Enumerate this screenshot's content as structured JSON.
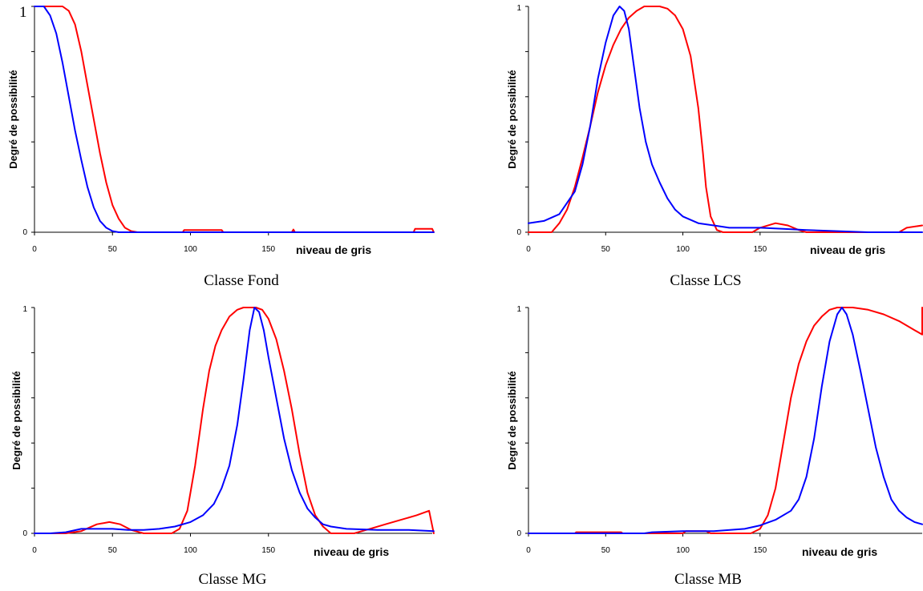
{
  "chart_data": [
    {
      "type": "line",
      "caption": "Classe Fond",
      "ylabel": "Degré de possibilité",
      "xlabel": "niveau de gris",
      "xlim": [
        0,
        255
      ],
      "ylim": [
        0,
        1
      ],
      "xticks": [
        "0",
        "50",
        "100",
        "150"
      ],
      "xtick_values": [
        0,
        50,
        100,
        150
      ],
      "ytick_labels": {
        "0": "0",
        "1": "1"
      },
      "y_max_label_large": true,
      "series": [
        {
          "color": "#ff0000",
          "points": [
            [
              0,
              1
            ],
            [
              18,
              1
            ],
            [
              22,
              0.98
            ],
            [
              26,
              0.92
            ],
            [
              30,
              0.8
            ],
            [
              34,
              0.65
            ],
            [
              38,
              0.5
            ],
            [
              42,
              0.35
            ],
            [
              46,
              0.22
            ],
            [
              50,
              0.12
            ],
            [
              54,
              0.06
            ],
            [
              58,
              0.02
            ],
            [
              62,
              0.005
            ],
            [
              66,
              0
            ],
            [
              95,
              0
            ],
            [
              96,
              0.01
            ],
            [
              120,
              0.01
            ],
            [
              121,
              0
            ],
            [
              165,
              0
            ],
            [
              166,
              0.012
            ],
            [
              167,
              0
            ],
            [
              243,
              0
            ],
            [
              244,
              0.015
            ],
            [
              255,
              0.015
            ],
            [
              256,
              0
            ]
          ]
        },
        {
          "color": "#0000ff",
          "points": [
            [
              0,
              1
            ],
            [
              6,
              1
            ],
            [
              10,
              0.96
            ],
            [
              14,
              0.88
            ],
            [
              18,
              0.75
            ],
            [
              22,
              0.6
            ],
            [
              26,
              0.45
            ],
            [
              30,
              0.32
            ],
            [
              34,
              0.2
            ],
            [
              38,
              0.11
            ],
            [
              42,
              0.05
            ],
            [
              46,
              0.02
            ],
            [
              50,
              0.005
            ],
            [
              54,
              0
            ],
            [
              256,
              0
            ]
          ]
        }
      ]
    },
    {
      "type": "line",
      "caption": "Classe LCS",
      "ylabel": "Degré de possibilité",
      "xlabel": "niveau de gris",
      "xlim": [
        0,
        255
      ],
      "ylim": [
        0,
        1
      ],
      "xticks": [
        "0",
        "50",
        "100",
        "150"
      ],
      "xtick_values": [
        0,
        50,
        100,
        150
      ],
      "ytick_labels": {
        "0": "0",
        "1": "1"
      },
      "y_max_label_large": false,
      "series": [
        {
          "color": "#ff0000",
          "points": [
            [
              0,
              0
            ],
            [
              15,
              0
            ],
            [
              20,
              0.04
            ],
            [
              25,
              0.1
            ],
            [
              30,
              0.2
            ],
            [
              35,
              0.33
            ],
            [
              40,
              0.47
            ],
            [
              45,
              0.62
            ],
            [
              50,
              0.74
            ],
            [
              55,
              0.83
            ],
            [
              60,
              0.9
            ],
            [
              65,
              0.95
            ],
            [
              70,
              0.98
            ],
            [
              75,
              1
            ],
            [
              85,
              1
            ],
            [
              90,
              0.99
            ],
            [
              95,
              0.96
            ],
            [
              100,
              0.9
            ],
            [
              105,
              0.78
            ],
            [
              110,
              0.55
            ],
            [
              113,
              0.35
            ],
            [
              115,
              0.2
            ],
            [
              118,
              0.07
            ],
            [
              122,
              0.01
            ],
            [
              126,
              0
            ],
            [
              145,
              0
            ],
            [
              150,
              0.02
            ],
            [
              160,
              0.04
            ],
            [
              168,
              0.03
            ],
            [
              175,
              0.01
            ],
            [
              180,
              0
            ],
            [
              240,
              0
            ],
            [
              245,
              0.02
            ],
            [
              255,
              0.03
            ]
          ]
        },
        {
          "color": "#0000ff",
          "points": [
            [
              0,
              0.04
            ],
            [
              10,
              0.05
            ],
            [
              20,
              0.08
            ],
            [
              30,
              0.18
            ],
            [
              35,
              0.3
            ],
            [
              40,
              0.47
            ],
            [
              45,
              0.68
            ],
            [
              50,
              0.84
            ],
            [
              55,
              0.96
            ],
            [
              59,
              1
            ],
            [
              62,
              0.98
            ],
            [
              65,
              0.9
            ],
            [
              68,
              0.75
            ],
            [
              72,
              0.55
            ],
            [
              76,
              0.4
            ],
            [
              80,
              0.3
            ],
            [
              85,
              0.22
            ],
            [
              90,
              0.15
            ],
            [
              95,
              0.1
            ],
            [
              100,
              0.07
            ],
            [
              110,
              0.04
            ],
            [
              120,
              0.03
            ],
            [
              130,
              0.02
            ],
            [
              150,
              0.02
            ],
            [
              165,
              0.015
            ],
            [
              180,
              0.01
            ],
            [
              200,
              0.005
            ],
            [
              220,
              0
            ],
            [
              256,
              0
            ]
          ]
        }
      ]
    },
    {
      "type": "line",
      "caption": "Classe MG",
      "ylabel": "Degré de possibilité",
      "xlabel": "niveau de gris",
      "xlim": [
        0,
        255
      ],
      "ylim": [
        0,
        1
      ],
      "xticks": [
        "0",
        "50",
        "100",
        "150"
      ],
      "xtick_values": [
        0,
        50,
        100,
        150
      ],
      "ytick_labels": {
        "0": "0",
        "1": "1"
      },
      "y_max_label_large": false,
      "series": [
        {
          "color": "#ff0000",
          "points": [
            [
              0,
              0
            ],
            [
              20,
              0
            ],
            [
              30,
              0.01
            ],
            [
              40,
              0.04
            ],
            [
              48,
              0.05
            ],
            [
              55,
              0.04
            ],
            [
              62,
              0.015
            ],
            [
              70,
              0
            ],
            [
              88,
              0
            ],
            [
              93,
              0.02
            ],
            [
              98,
              0.1
            ],
            [
              103,
              0.3
            ],
            [
              108,
              0.55
            ],
            [
              112,
              0.72
            ],
            [
              116,
              0.83
            ],
            [
              120,
              0.9
            ],
            [
              125,
              0.96
            ],
            [
              130,
              0.99
            ],
            [
              134,
              1
            ],
            [
              142,
              1
            ],
            [
              146,
              0.99
            ],
            [
              150,
              0.95
            ],
            [
              155,
              0.86
            ],
            [
              160,
              0.72
            ],
            [
              165,
              0.55
            ],
            [
              170,
              0.35
            ],
            [
              175,
              0.18
            ],
            [
              180,
              0.08
            ],
            [
              185,
              0.03
            ],
            [
              190,
              0
            ],
            [
              205,
              0
            ],
            [
              215,
              0.02
            ],
            [
              225,
              0.04
            ],
            [
              235,
              0.06
            ],
            [
              245,
              0.08
            ],
            [
              253,
              0.1
            ],
            [
              256,
              0
            ]
          ]
        },
        {
          "color": "#0000ff",
          "points": [
            [
              0,
              0
            ],
            [
              10,
              0
            ],
            [
              20,
              0.005
            ],
            [
              30,
              0.02
            ],
            [
              40,
              0.02
            ],
            [
              50,
              0.02
            ],
            [
              60,
              0.015
            ],
            [
              70,
              0.015
            ],
            [
              80,
              0.02
            ],
            [
              90,
              0.03
            ],
            [
              100,
              0.05
            ],
            [
              108,
              0.08
            ],
            [
              115,
              0.13
            ],
            [
              120,
              0.2
            ],
            [
              125,
              0.3
            ],
            [
              130,
              0.48
            ],
            [
              134,
              0.68
            ],
            [
              138,
              0.9
            ],
            [
              141,
              1
            ],
            [
              144,
              0.98
            ],
            [
              147,
              0.9
            ],
            [
              150,
              0.78
            ],
            [
              155,
              0.6
            ],
            [
              160,
              0.42
            ],
            [
              165,
              0.28
            ],
            [
              170,
              0.18
            ],
            [
              175,
              0.11
            ],
            [
              180,
              0.07
            ],
            [
              185,
              0.04
            ],
            [
              190,
              0.03
            ],
            [
              200,
              0.02
            ],
            [
              220,
              0.015
            ],
            [
              240,
              0.015
            ],
            [
              256,
              0.01
            ]
          ]
        }
      ]
    },
    {
      "type": "line",
      "caption": "Classe MB",
      "ylabel": "Degré de possibilité",
      "xlabel": "niveau de gris",
      "xlim": [
        0,
        255
      ],
      "ylim": [
        0,
        1
      ],
      "xticks": [
        "0",
        "50",
        "100",
        "150"
      ],
      "xtick_values": [
        0,
        50,
        100,
        150
      ],
      "ytick_labels": {
        "0": "0",
        "1": "1"
      },
      "y_max_label_large": false,
      "series": [
        {
          "color": "#ff0000",
          "points": [
            [
              0,
              0
            ],
            [
              30,
              0
            ],
            [
              31,
              0.005
            ],
            [
              60,
              0.005
            ],
            [
              61,
              0
            ],
            [
              100,
              0
            ],
            [
              102,
              0.01
            ],
            [
              115,
              0.01
            ],
            [
              118,
              0
            ],
            [
              144,
              0
            ],
            [
              150,
              0.02
            ],
            [
              155,
              0.08
            ],
            [
              160,
              0.2
            ],
            [
              165,
              0.4
            ],
            [
              170,
              0.6
            ],
            [
              175,
              0.75
            ],
            [
              180,
              0.85
            ],
            [
              185,
              0.92
            ],
            [
              190,
              0.96
            ],
            [
              195,
              0.99
            ],
            [
              200,
              1
            ],
            [
              210,
              1
            ],
            [
              220,
              0.99
            ],
            [
              230,
              0.97
            ],
            [
              240,
              0.94
            ],
            [
              250,
              0.9
            ],
            [
              255,
              0.88
            ],
            [
              256,
              1
            ]
          ]
        },
        {
          "color": "#0000ff",
          "points": [
            [
              0,
              0
            ],
            [
              75,
              0
            ],
            [
              80,
              0.005
            ],
            [
              100,
              0.01
            ],
            [
              120,
              0.01
            ],
            [
              140,
              0.02
            ],
            [
              150,
              0.035
            ],
            [
              160,
              0.06
            ],
            [
              170,
              0.1
            ],
            [
              175,
              0.15
            ],
            [
              180,
              0.25
            ],
            [
              185,
              0.42
            ],
            [
              190,
              0.65
            ],
            [
              195,
              0.85
            ],
            [
              200,
              0.97
            ],
            [
              203,
              1
            ],
            [
              206,
              0.97
            ],
            [
              210,
              0.88
            ],
            [
              215,
              0.72
            ],
            [
              220,
              0.55
            ],
            [
              225,
              0.38
            ],
            [
              230,
              0.25
            ],
            [
              235,
              0.15
            ],
            [
              240,
              0.1
            ],
            [
              245,
              0.07
            ],
            [
              250,
              0.05
            ],
            [
              256,
              0.04
            ]
          ]
        }
      ]
    }
  ]
}
